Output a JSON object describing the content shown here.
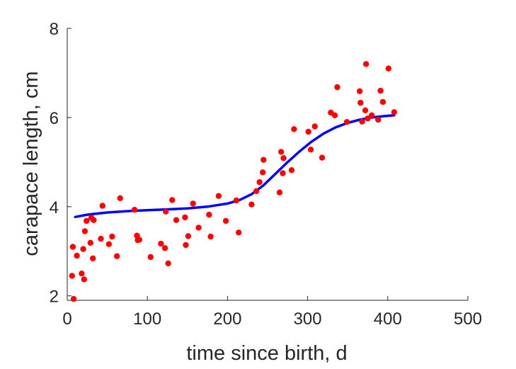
{
  "chart_data": {
    "type": "scatter",
    "xlabel": "time since birth, d",
    "ylabel": "carapace length, cm",
    "xlim": [
      0,
      500
    ],
    "ylim": [
      1.9,
      8
    ],
    "xticks": [
      0,
      100,
      200,
      300,
      400,
      500
    ],
    "yticks": [
      2,
      4,
      6,
      8
    ],
    "grid": false,
    "axes_box": "left-bottom",
    "series": [
      {
        "kind": "points",
        "color": "#ff0000",
        "points": [
          [
            6,
            2.45
          ],
          [
            7,
            3.1
          ],
          [
            8,
            1.93
          ],
          [
            12,
            2.9
          ],
          [
            18,
            2.5
          ],
          [
            20,
            3.05
          ],
          [
            21,
            2.37
          ],
          [
            22,
            3.45
          ],
          [
            24,
            3.68
          ],
          [
            29,
            3.19
          ],
          [
            30,
            3.75
          ],
          [
            32,
            2.84
          ],
          [
            33,
            3.7
          ],
          [
            42,
            3.28
          ],
          [
            44,
            4.02
          ],
          [
            52,
            3.16
          ],
          [
            56,
            3.33
          ],
          [
            62,
            2.89
          ],
          [
            66,
            4.19
          ],
          [
            84,
            3.93
          ],
          [
            87,
            3.35
          ],
          [
            88,
            3.25
          ],
          [
            90,
            3.26
          ],
          [
            104,
            2.87
          ],
          [
            117,
            3.17
          ],
          [
            122,
            3.07
          ],
          [
            123,
            3.89
          ],
          [
            126,
            2.73
          ],
          [
            131,
            4.15
          ],
          [
            136,
            3.7
          ],
          [
            147,
            3.76
          ],
          [
            148,
            3.14
          ],
          [
            151,
            3.34
          ],
          [
            157,
            4.07
          ],
          [
            164,
            3.53
          ],
          [
            177,
            3.82
          ],
          [
            179,
            3.33
          ],
          [
            189,
            4.24
          ],
          [
            198,
            3.68
          ],
          [
            211,
            4.14
          ],
          [
            214,
            3.42
          ],
          [
            230,
            4.05
          ],
          [
            236,
            4.35
          ],
          [
            240,
            4.55
          ],
          [
            244,
            4.77
          ],
          [
            245,
            5.05
          ],
          [
            265,
            4.32
          ],
          [
            267,
            5.23
          ],
          [
            269,
            4.75
          ],
          [
            270,
            5.09
          ],
          [
            280,
            4.82
          ],
          [
            283,
            5.74
          ],
          [
            301,
            5.68
          ],
          [
            304,
            5.28
          ],
          [
            309,
            5.8
          ],
          [
            318,
            5.1
          ],
          [
            329,
            6.11
          ],
          [
            334,
            6.05
          ],
          [
            337,
            6.68
          ],
          [
            349,
            5.9
          ],
          [
            365,
            6.59
          ],
          [
            366,
            6.33
          ],
          [
            368,
            5.91
          ],
          [
            372,
            6.16
          ],
          [
            373,
            7.2
          ],
          [
            375,
            5.98
          ],
          [
            380,
            6.05
          ],
          [
            388,
            5.95
          ],
          [
            391,
            6.6
          ],
          [
            394,
            6.35
          ],
          [
            401,
            7.1
          ],
          [
            408,
            6.12
          ]
        ]
      },
      {
        "kind": "fit-curve",
        "color": "#0000ff",
        "points": [
          [
            10,
            3.77
          ],
          [
            25,
            3.82
          ],
          [
            50,
            3.87
          ],
          [
            75,
            3.9
          ],
          [
            100,
            3.92
          ],
          [
            125,
            3.94
          ],
          [
            150,
            3.96
          ],
          [
            175,
            4.0
          ],
          [
            200,
            4.07
          ],
          [
            215,
            4.15
          ],
          [
            230,
            4.28
          ],
          [
            245,
            4.48
          ],
          [
            260,
            4.74
          ],
          [
            275,
            5.0
          ],
          [
            290,
            5.24
          ],
          [
            305,
            5.46
          ],
          [
            320,
            5.64
          ],
          [
            335,
            5.78
          ],
          [
            350,
            5.88
          ],
          [
            365,
            5.95
          ],
          [
            380,
            6.0
          ],
          [
            395,
            6.03
          ],
          [
            408,
            6.05
          ]
        ]
      }
    ]
  }
}
